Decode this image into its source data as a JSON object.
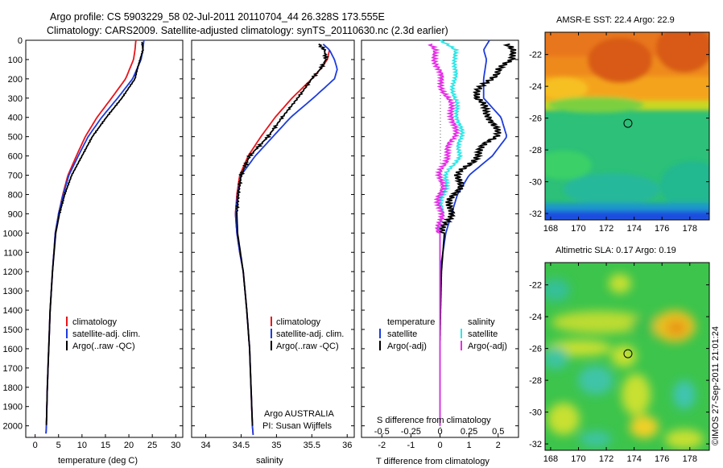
{
  "title_line1": "Argo profile: CS 5903229_58 02-Jul-2011 20110704_44 26.328S 173.555E",
  "title_line2": "Climatology: CARS2009. Satellite-adjusted climatology: synTS_20110630.nc (2.3d earlier)",
  "footer_stamp": "©IMOS 27-Sep-2011 21:01:24",
  "depth_ticks": [
    "0",
    "100",
    "200",
    "300",
    "400",
    "500",
    "600",
    "700",
    "800",
    "900",
    "1000",
    "1100",
    "1200",
    "1300",
    "1400",
    "1500",
    "1600",
    "1700",
    "1800",
    "1900",
    "2000"
  ],
  "colors": {
    "climatology": "#e8141a",
    "satellite": "#1d3cdc",
    "argo": "#000000",
    "sat_salinity": "#2ee6e6",
    "argo_salinity": "#e62ee6"
  },
  "legend": {
    "climatology": "climatology",
    "satellite": "satellite-adj. clim.",
    "argo": "Argo(..raw -QC)"
  },
  "temperature_panel": {
    "xlabel": "temperature (deg C)",
    "xticks": [
      "0",
      "5",
      "10",
      "15",
      "20",
      "25",
      "30"
    ]
  },
  "salinity_panel": {
    "xlabel": "salinity",
    "xticks": [
      "34",
      "34.5",
      "35",
      "35.5",
      "36"
    ],
    "float_owner": "Argo AUSTRALIA",
    "pi": "PI: Susan Wijffels"
  },
  "difference_panel": {
    "legend_temperature_header": "temperature",
    "legend_salinity_header": "salinity",
    "legend_satellite": "satellite",
    "legend_argo": "Argo(-adj)",
    "s_label": "S difference from climatology",
    "s_ticks": [
      "-0.5",
      "-0.25",
      "0",
      "0.25",
      "0.5"
    ],
    "t_label": "T difference from climatology",
    "t_ticks": [
      "-2",
      "-1",
      "0",
      "1",
      "2"
    ]
  },
  "sst_map": {
    "title": "AMSR-E SST: 22.4 Argo: 22.9",
    "yticks": [
      "-22",
      "-24",
      "-26",
      "-28",
      "-30",
      "-32"
    ],
    "xticks": [
      "168",
      "170",
      "172",
      "174",
      "176",
      "178"
    ]
  },
  "sla_map": {
    "title": "Altimetric SLA: 0.17 Argo: 0.19",
    "yticks": [
      "-22",
      "-24",
      "-26",
      "-28",
      "-30",
      "-32"
    ],
    "xticks": [
      "168",
      "170",
      "172",
      "174",
      "176",
      "178"
    ]
  },
  "chart_data": [
    {
      "type": "line",
      "panel": "temperature",
      "xlabel": "temperature (deg C)",
      "ylabel": "",
      "xlim": [
        -2,
        31.5
      ],
      "ylim": [
        2060,
        0
      ],
      "series": [
        {
          "name": "climatology",
          "depth": [
            0,
            50,
            100,
            200,
            300,
            400,
            500,
            600,
            700,
            800,
            900,
            1000,
            1200,
            1400,
            1600,
            1800,
            2000,
            2050
          ],
          "values": [
            21.5,
            21.3,
            21.0,
            19.3,
            16.3,
            13.2,
            10.7,
            8.8,
            7.0,
            5.9,
            5.0,
            4.3,
            3.7,
            3.2,
            2.9,
            2.6,
            2.4,
            2.3
          ]
        },
        {
          "name": "satellite-adj. clim.",
          "depth": [
            0,
            50,
            100,
            200,
            300,
            400,
            500,
            600,
            700,
            800,
            900,
            1000,
            1200,
            1400,
            1600,
            1800,
            2000,
            2050
          ],
          "values": [
            23.2,
            23.0,
            22.6,
            20.8,
            17.6,
            14.2,
            11.3,
            9.2,
            7.2,
            6.0,
            5.0,
            4.3,
            3.7,
            3.2,
            2.9,
            2.6,
            2.4,
            2.3
          ]
        },
        {
          "name": "Argo(..raw -QC)",
          "depth": [
            10,
            50,
            100,
            150,
            200,
            300,
            400,
            500,
            600,
            700,
            800,
            900,
            1000,
            1200,
            1400,
            1600,
            1800,
            2000
          ],
          "values": [
            22.8,
            23.0,
            22.4,
            21.8,
            21.3,
            18.5,
            15.2,
            12.2,
            10.0,
            7.8,
            6.3,
            5.2,
            4.4,
            3.7,
            3.2,
            2.9,
            2.6,
            2.4
          ]
        }
      ]
    },
    {
      "type": "line",
      "panel": "salinity",
      "xlabel": "salinity",
      "ylabel": "",
      "xlim": [
        33.8,
        36.1
      ],
      "ylim": [
        2060,
        0
      ],
      "series": [
        {
          "name": "climatology",
          "depth": [
            50,
            100,
            150,
            200,
            300,
            400,
            500,
            600,
            700,
            800,
            900,
            1000,
            1100,
            1200,
            1400,
            1600,
            1800,
            2000,
            2050
          ],
          "values": [
            35.75,
            35.72,
            35.62,
            35.5,
            35.22,
            34.98,
            34.78,
            34.6,
            34.48,
            34.44,
            34.42,
            34.44,
            34.48,
            34.53,
            34.58,
            34.62,
            34.64,
            34.66,
            34.67
          ]
        },
        {
          "name": "satellite-adj. clim.",
          "depth": [
            20,
            50,
            100,
            150,
            200,
            300,
            400,
            500,
            600,
            700,
            800,
            900,
            1000,
            1100,
            1200,
            1400,
            1600,
            1800,
            2000,
            2050
          ],
          "values": [
            35.66,
            35.75,
            35.82,
            35.86,
            35.82,
            35.52,
            35.2,
            34.95,
            34.7,
            34.5,
            34.45,
            34.42,
            34.44,
            34.48,
            34.53,
            34.58,
            34.62,
            34.64,
            34.66,
            34.67
          ]
        },
        {
          "name": "Argo(..raw -QC)",
          "depth": [
            20,
            50,
            100,
            150,
            200,
            300,
            400,
            500,
            600,
            700,
            800,
            900,
            1000,
            1200,
            1400,
            1600,
            1800,
            2000
          ],
          "values": [
            35.6,
            35.68,
            35.7,
            35.62,
            35.5,
            35.3,
            35.08,
            34.88,
            34.62,
            34.5,
            34.46,
            34.44,
            34.45,
            34.53,
            34.58,
            34.62,
            34.64,
            34.66
          ]
        }
      ]
    },
    {
      "type": "line",
      "panel": "difference",
      "xlabel": "T difference from climatology",
      "x2label": "S difference from climatology",
      "xlim": [
        -2.7,
        2.7
      ],
      "x2lim": [
        -0.675,
        0.675
      ],
      "ylim": [
        2060,
        0
      ],
      "series": [
        {
          "name": "satellite",
          "quantity": "temperature",
          "depth": [
            0,
            50,
            100,
            200,
            300,
            400,
            500,
            600,
            700,
            800,
            900,
            1000,
            1100,
            1200,
            1400,
            1600,
            1800,
            2000
          ],
          "values": [
            1.7,
            1.5,
            1.6,
            1.5,
            1.5,
            2.1,
            2.3,
            1.8,
            1.0,
            0.6,
            0.4,
            0.2,
            0.1,
            0.0,
            0.0,
            0.0,
            0.0,
            0.0
          ]
        },
        {
          "name": "Argo(-adj)",
          "quantity": "temperature",
          "depth": [
            20,
            50,
            100,
            150,
            200,
            300,
            400,
            500,
            600,
            700,
            800,
            900,
            1000,
            1200,
            1400,
            1600,
            1800,
            2000
          ],
          "values": [
            2.2,
            2.4,
            2.6,
            2.0,
            1.7,
            1.2,
            1.8,
            1.9,
            1.2,
            0.7,
            0.5,
            0.3,
            0.15,
            0.05,
            0.02,
            0.0,
            0.0,
            0.0
          ]
        },
        {
          "name": "satellite",
          "quantity": "salinity",
          "depth": [
            0,
            50,
            100,
            200,
            300,
            400,
            500,
            600,
            700,
            800,
            900,
            1000,
            1200,
            1400,
            1600,
            1800,
            2000
          ],
          "values": [
            0.0,
            0.12,
            0.14,
            0.12,
            0.12,
            0.16,
            0.18,
            0.16,
            0.06,
            0.03,
            0.01,
            0.0,
            0.0,
            0.0,
            0.0,
            0.0,
            0.0
          ]
        },
        {
          "name": "Argo(-adj)",
          "quantity": "salinity",
          "depth": [
            20,
            50,
            100,
            200,
            300,
            400,
            500,
            600,
            700,
            800,
            900,
            1000,
            1200,
            1400,
            1600,
            1800,
            2000
          ],
          "values": [
            -0.1,
            -0.06,
            -0.03,
            0.0,
            0.06,
            0.12,
            0.12,
            0.05,
            0.01,
            0.0,
            0.0,
            0.0,
            0.0,
            0.0,
            0.0,
            0.0,
            0.0
          ]
        }
      ]
    },
    {
      "type": "heatmap",
      "panel": "sst_map",
      "title": "AMSR-E SST: 22.4 Argo: 22.9",
      "xlim": [
        167.6,
        179.4
      ],
      "ylim": [
        -32.4,
        -20.6
      ],
      "argo_position": {
        "lon": 173.555,
        "lat": -26.328
      },
      "field_summary": "warm (orange) north of about -25, green south of about -25.5, blue band near -32"
    },
    {
      "type": "heatmap",
      "panel": "sla_map",
      "title": "Altimetric SLA: 0.17 Argo: 0.19",
      "xlim": [
        167.6,
        179.4
      ],
      "ylim": [
        -32.4,
        -20.6
      ],
      "argo_position": {
        "lon": 173.555,
        "lat": -26.328
      },
      "field_summary": "mostly green field with yellow eddies, orange patch near 177E 25S"
    }
  ]
}
